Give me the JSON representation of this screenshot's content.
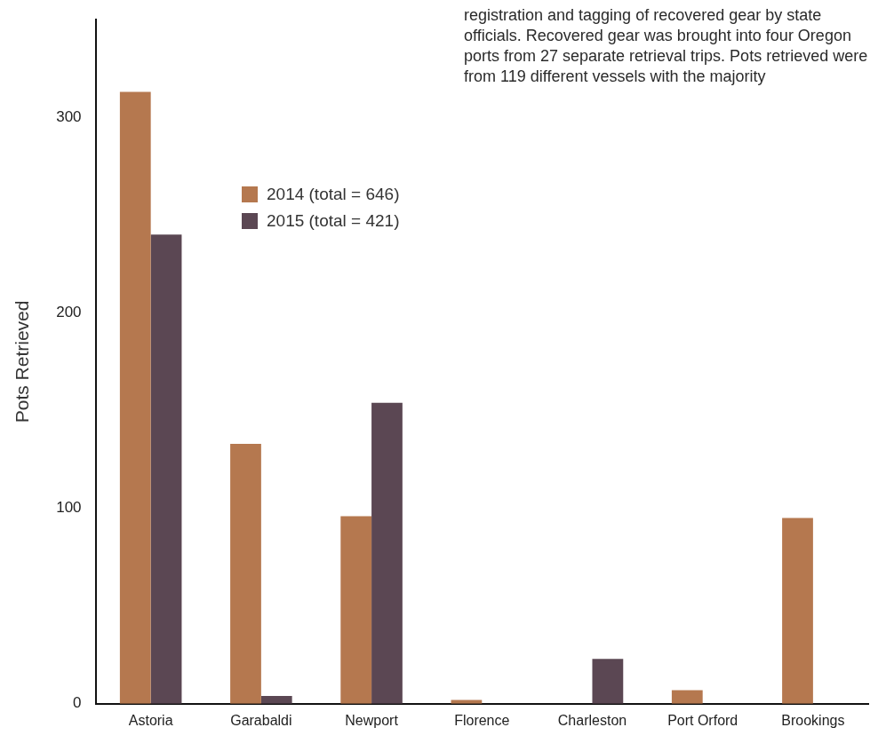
{
  "chart_data": {
    "type": "bar",
    "annotation": "registration and tagging of recovered gear by state officials. Recovered gear was brought into four Oregon ports from 27 separate retrieval trips. Pots retrieved were from 119 different vessels with the majority",
    "ylabel": "Pots Retrieved",
    "categories": [
      "Astoria",
      "Garabaldi",
      "Newport",
      "Florence",
      "Charleston",
      "Port Orford",
      "Brookings"
    ],
    "series": [
      {
        "name": "2014 (total = 646)",
        "color": "#b5784f",
        "values": [
          313,
          133,
          96,
          2,
          null,
          7,
          95
        ]
      },
      {
        "name": "2015 (total = 421)",
        "color": "#5b4753",
        "values": [
          240,
          4,
          154,
          null,
          23,
          null,
          null
        ]
      }
    ],
    "ylim": [
      0,
      350
    ],
    "yticks": [
      0,
      100,
      200,
      300
    ],
    "grid": false,
    "legend": "top-left"
  }
}
